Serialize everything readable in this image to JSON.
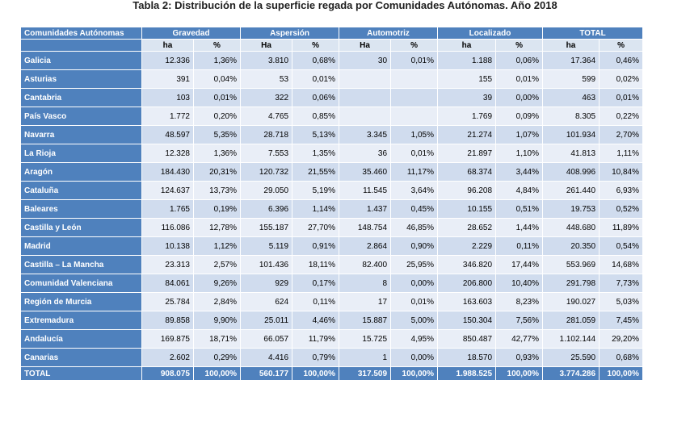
{
  "title": "Tabla 2: Distribución de la superficie regada por Comunidades Autónomas. Año 2018",
  "header": {
    "first": "Comunidades Autónomas",
    "groups": [
      "Gravedad",
      "Aspersión",
      "Automotriz",
      "Localizado",
      "TOTAL"
    ],
    "units": [
      "ha",
      "%",
      "Ha",
      "%",
      "Ha",
      "%",
      "ha",
      "%",
      "ha",
      "%"
    ]
  },
  "rows": [
    {
      "name": "Galicia",
      "v": [
        "12.336",
        "1,36%",
        "3.810",
        "0,68%",
        "30",
        "0,01%",
        "1.188",
        "0,06%",
        "17.364",
        "0,46%"
      ]
    },
    {
      "name": "Asturias",
      "v": [
        "391",
        "0,04%",
        "53",
        "0,01%",
        "",
        "",
        "155",
        "0,01%",
        "599",
        "0,02%"
      ]
    },
    {
      "name": "Cantabria",
      "v": [
        "103",
        "0,01%",
        "322",
        "0,06%",
        "",
        "",
        "39",
        "0,00%",
        "463",
        "0,01%"
      ]
    },
    {
      "name": "País Vasco",
      "v": [
        "1.772",
        "0,20%",
        "4.765",
        "0,85%",
        "",
        "",
        "1.769",
        "0,09%",
        "8.305",
        "0,22%"
      ]
    },
    {
      "name": "Navarra",
      "v": [
        "48.597",
        "5,35%",
        "28.718",
        "5,13%",
        "3.345",
        "1,05%",
        "21.274",
        "1,07%",
        "101.934",
        "2,70%"
      ]
    },
    {
      "name": "La Rioja",
      "v": [
        "12.328",
        "1,36%",
        "7.553",
        "1,35%",
        "36",
        "0,01%",
        "21.897",
        "1,10%",
        "41.813",
        "1,11%"
      ]
    },
    {
      "name": "Aragón",
      "v": [
        "184.430",
        "20,31%",
        "120.732",
        "21,55%",
        "35.460",
        "11,17%",
        "68.374",
        "3,44%",
        "408.996",
        "10,84%"
      ]
    },
    {
      "name": "Cataluña",
      "v": [
        "124.637",
        "13,73%",
        "29.050",
        "5,19%",
        "11.545",
        "3,64%",
        "96.208",
        "4,84%",
        "261.440",
        "6,93%"
      ]
    },
    {
      "name": "Baleares",
      "v": [
        "1.765",
        "0,19%",
        "6.396",
        "1,14%",
        "1.437",
        "0,45%",
        "10.155",
        "0,51%",
        "19.753",
        "0,52%"
      ]
    },
    {
      "name": "Castilla y  León",
      "v": [
        "116.086",
        "12,78%",
        "155.187",
        "27,70%",
        "148.754",
        "46,85%",
        "28.652",
        "1,44%",
        "448.680",
        "11,89%"
      ]
    },
    {
      "name": "Madrid",
      "v": [
        "10.138",
        "1,12%",
        "5.119",
        "0,91%",
        "2.864",
        "0,90%",
        "2.229",
        "0,11%",
        "20.350",
        "0,54%"
      ]
    },
    {
      "name": "Castilla – La  Mancha",
      "v": [
        "23.313",
        "2,57%",
        "101.436",
        "18,11%",
        "82.400",
        "25,95%",
        "346.820",
        "17,44%",
        "553.969",
        "14,68%"
      ]
    },
    {
      "name": "Comunidad Valenciana",
      "v": [
        "84.061",
        "9,26%",
        "929",
        "0,17%",
        "8",
        "0,00%",
        "206.800",
        "10,40%",
        "291.798",
        "7,73%"
      ]
    },
    {
      "name": "Región de Murcia",
      "v": [
        "25.784",
        "2,84%",
        "624",
        "0,11%",
        "17",
        "0,01%",
        "163.603",
        "8,23%",
        "190.027",
        "5,03%"
      ]
    },
    {
      "name": "Extremadura",
      "v": [
        "89.858",
        "9,90%",
        "25.011",
        "4,46%",
        "15.887",
        "5,00%",
        "150.304",
        "7,56%",
        "281.059",
        "7,45%"
      ]
    },
    {
      "name": "Andalucía",
      "v": [
        "169.875",
        "18,71%",
        "66.057",
        "11,79%",
        "15.725",
        "4,95%",
        "850.487",
        "42,77%",
        "1.102.144",
        "29,20%"
      ]
    },
    {
      "name": "Canarias",
      "v": [
        "2.602",
        "0,29%",
        "4.416",
        "0,79%",
        "1",
        "0,00%",
        "18.570",
        "0,93%",
        "25.590",
        "0,68%"
      ]
    }
  ],
  "total": {
    "name": "TOTAL",
    "v": [
      "908.075",
      "100,00%",
      "560.177",
      "100,00%",
      "317.509",
      "100,00%",
      "1.988.525",
      "100,00%",
      "3.774.286",
      "100,00%"
    ]
  }
}
